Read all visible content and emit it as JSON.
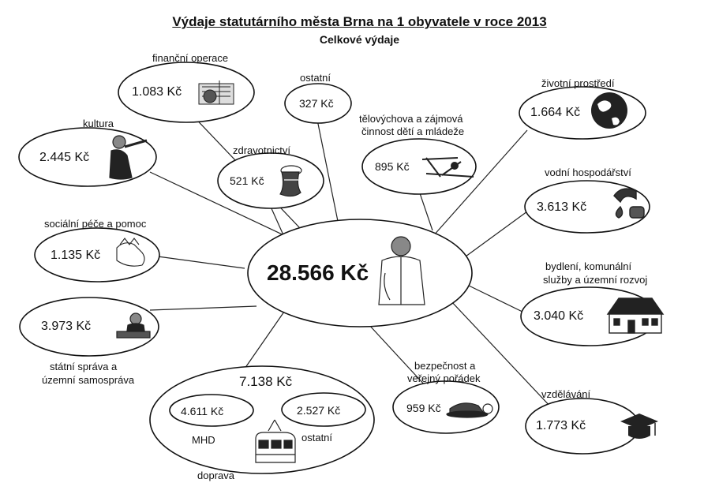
{
  "title": "Výdaje statutárního města Brna na 1 obyvatele v roce 2013",
  "subtitle": "Celkové výdaje",
  "center": {
    "value": "28.566 Kč"
  },
  "items": {
    "financni_operace": {
      "label": "finanční operace",
      "value": "1.083 Kč",
      "icon": "documents-icon"
    },
    "ostatni": {
      "label": "ostatní",
      "value": "327 Kč"
    },
    "telovychova": {
      "label_line1": "tělovýchova a zájmová",
      "label_line2": "činnost dětí a mládeže",
      "value": "895 Kč",
      "icon": "gymnast-icon"
    },
    "zivotni_prostredi": {
      "label": "životní prostředí",
      "value": "1.664 Kč",
      "icon": "globe-icon"
    },
    "kultura": {
      "label": "kultura",
      "value": "2.445 Kč",
      "icon": "musician-icon"
    },
    "zdravotnictvi": {
      "label": "zdravotnictví",
      "value": "521 Kč",
      "icon": "bandaged-hand-icon"
    },
    "vodni_hospodarstvi": {
      "label": "vodní hospodářství",
      "value": "3.613 Kč",
      "icon": "water-tap-icon"
    },
    "socialni_pece": {
      "label": "sociální péče a pomoc",
      "value": "1.135 Kč",
      "icon": "helping-hands-icon"
    },
    "bydleni": {
      "label_line1": "bydlení, komunální",
      "label_line2": "služby a územní rozvoj",
      "value": "3.040 Kč",
      "icon": "house-icon"
    },
    "statni_sprava": {
      "label_line1": "státní správa a",
      "label_line2": "územní samospráva",
      "value": "3.973 Kč",
      "icon": "official-at-desk-icon"
    },
    "doprava": {
      "label": "doprava",
      "value": "7.138 Kč",
      "mhd": {
        "label": "MHD",
        "value": "4.611 Kč"
      },
      "ostatni": {
        "label": "ostatní",
        "value": "2.527 Kč"
      },
      "icon": "tram-icon"
    },
    "bezpecnost": {
      "label_line1": "bezpečnost a",
      "label_line2": "veřejný pořádek",
      "value": "959 Kč",
      "icon": "police-cap-handcuffs-icon"
    },
    "vzdelavani": {
      "label": "vzdělávání",
      "value": "1.773 Kč",
      "icon": "graduation-cap-icon"
    }
  }
}
